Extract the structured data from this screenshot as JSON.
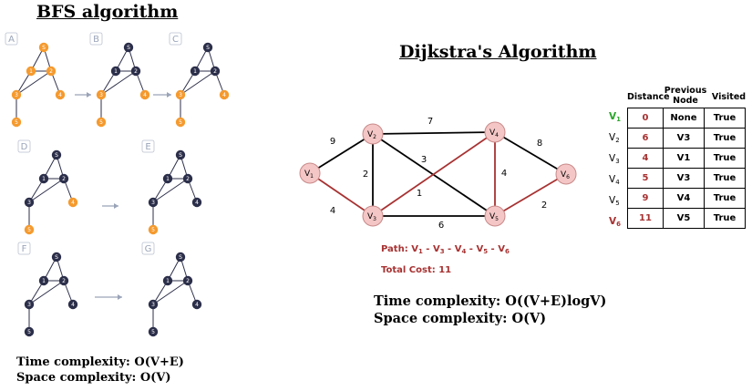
{
  "bfs": {
    "title": "BFS algorithm",
    "panel_labels": [
      "A",
      "B",
      "C",
      "D",
      "E",
      "F",
      "G"
    ],
    "node_labels": [
      "S",
      "1",
      "2",
      "3",
      "4",
      "5"
    ],
    "time_complexity": "Time complexity: O(V+E)",
    "space_complexity": "Space complexity: O(V)",
    "colors": {
      "visited": "#f59a2e",
      "unvisited": "#2c2f4a",
      "panel_label": "#9aa4b8",
      "edge": "#2c2f4a"
    }
  },
  "dijkstra": {
    "title": "Dijkstra's Algorithm",
    "nodes": [
      {
        "base": "V",
        "sub": "1"
      },
      {
        "base": "V",
        "sub": "2"
      },
      {
        "base": "V",
        "sub": "3"
      },
      {
        "base": "V",
        "sub": "4"
      },
      {
        "base": "V",
        "sub": "5"
      },
      {
        "base": "V",
        "sub": "6"
      }
    ],
    "edge_weights": [
      "9",
      "4",
      "7",
      "2",
      "3",
      "1",
      "6",
      "4",
      "8",
      "2"
    ],
    "path_label": "Path: ",
    "path_nodes": [
      {
        "base": "V",
        "sub": "1"
      },
      {
        "base": "V",
        "sub": "3"
      },
      {
        "base": "V",
        "sub": "4"
      },
      {
        "base": "V",
        "sub": "5"
      },
      {
        "base": "V",
        "sub": "6"
      }
    ],
    "path_separator": " - ",
    "total_cost": "Total Cost: 11",
    "table": {
      "headers": [
        "Distance",
        "Previous Node",
        "Visited"
      ],
      "rows": [
        {
          "label": {
            "base": "V",
            "sub": "1"
          },
          "distance": "0",
          "previous": "None",
          "visited": "True"
        },
        {
          "label": {
            "base": "V",
            "sub": "2"
          },
          "distance": "6",
          "previous": "V3",
          "visited": "True"
        },
        {
          "label": {
            "base": "V",
            "sub": "3"
          },
          "distance": "4",
          "previous": "V1",
          "visited": "True"
        },
        {
          "label": {
            "base": "V",
            "sub": "4"
          },
          "distance": "5",
          "previous": "V3",
          "visited": "True"
        },
        {
          "label": {
            "base": "V",
            "sub": "5"
          },
          "distance": "9",
          "previous": "V4",
          "visited": "True"
        },
        {
          "label": {
            "base": "V",
            "sub": "6"
          },
          "distance": "11",
          "previous": "V5",
          "visited": "True"
        }
      ]
    },
    "time_complexity": "Time complexity: O((V+E)logV)",
    "space_complexity": "Space complexity: O(V)",
    "colors": {
      "node_fill": "#f4c6c6",
      "node_stroke": "#c98a8a",
      "path_edge": "#a83232",
      "edge": "#000000",
      "start_label": "#2aa52a",
      "end_label": "#a83232"
    }
  }
}
